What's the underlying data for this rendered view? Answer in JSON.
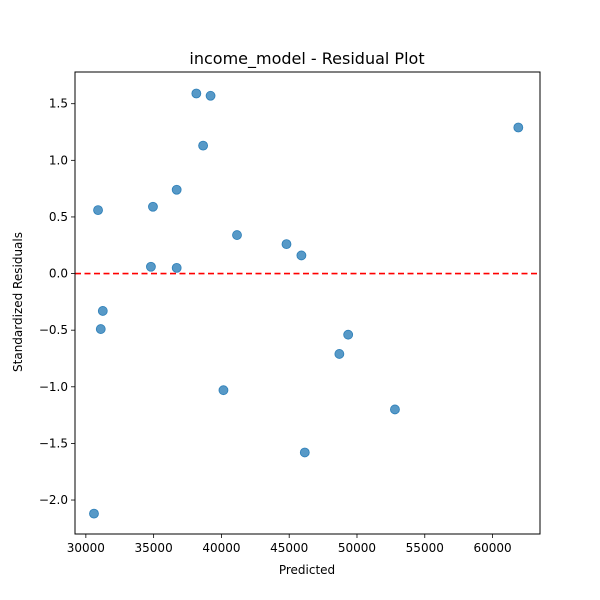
{
  "chart_data": {
    "type": "scatter",
    "title": "income_model - Residual Plot",
    "xlabel": "Predicted",
    "ylabel": "Standardized Residuals",
    "xlim": [
      29200,
      63500
    ],
    "ylim": [
      -2.3,
      1.78
    ],
    "xticks": [
      30000,
      35000,
      40000,
      45000,
      50000,
      55000,
      60000
    ],
    "yticks": [
      -2.0,
      -1.5,
      -1.0,
      -0.5,
      0.0,
      0.5,
      1.0,
      1.5
    ],
    "xtick_labels": [
      "30000",
      "35000",
      "40000",
      "45000",
      "50000",
      "55000",
      "60000"
    ],
    "ytick_labels": [
      "−2.0",
      "−1.5",
      "−1.0",
      "−0.5",
      "0.0",
      "0.5",
      "1.0",
      "1.5"
    ],
    "grid": false,
    "reference_line": {
      "y": 0.0,
      "style": "dashed",
      "color": "#ff0000"
    },
    "marker_color": "#1f77b4",
    "marker_alpha": 0.75,
    "points": [
      {
        "x": 30600,
        "y": -2.12
      },
      {
        "x": 30900,
        "y": 0.56
      },
      {
        "x": 31100,
        "y": -0.49
      },
      {
        "x": 31250,
        "y": -0.33
      },
      {
        "x": 34800,
        "y": 0.06
      },
      {
        "x": 34950,
        "y": 0.59
      },
      {
        "x": 36700,
        "y": 0.05
      },
      {
        "x": 36700,
        "y": 0.74
      },
      {
        "x": 38150,
        "y": 1.59
      },
      {
        "x": 38650,
        "y": 1.13
      },
      {
        "x": 39200,
        "y": 1.57
      },
      {
        "x": 40150,
        "y": -1.03
      },
      {
        "x": 41150,
        "y": 0.34
      },
      {
        "x": 44800,
        "y": 0.26
      },
      {
        "x": 45900,
        "y": 0.16
      },
      {
        "x": 46150,
        "y": -1.58
      },
      {
        "x": 48700,
        "y": -0.71
      },
      {
        "x": 49350,
        "y": -0.54
      },
      {
        "x": 52800,
        "y": -1.2
      },
      {
        "x": 61900,
        "y": 1.29
      }
    ]
  }
}
